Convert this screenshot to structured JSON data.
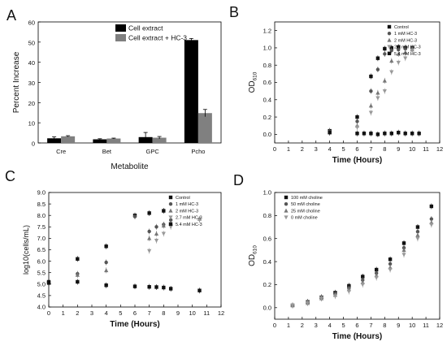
{
  "chart_data": [
    {
      "panel": "A",
      "type": "bar",
      "categories": [
        "Cre",
        "Bet",
        "GPC",
        "Pcho"
      ],
      "series": [
        {
          "name": "Cell extract",
          "color": "#000000",
          "values": [
            2.3,
            1.8,
            2.9,
            51.0
          ],
          "errors": [
            0.7,
            0.3,
            2.3,
            0.8
          ]
        },
        {
          "name": "Cell extract + HC-3",
          "color": "#808080",
          "values": [
            3.3,
            2.2,
            2.6,
            14.8
          ],
          "errors": [
            0.3,
            0.2,
            0.6,
            1.8
          ]
        }
      ],
      "xlabel": "Metabolite",
      "ylabel": "Percent Increase",
      "ylim": [
        0,
        60
      ],
      "yticks": [
        0,
        10,
        20,
        30,
        40,
        50,
        60
      ],
      "legend_position": "top-right"
    },
    {
      "panel": "B",
      "type": "scatter",
      "xlabel": "Time (Hours)",
      "ylabel": "OD",
      "ylabel_sub": "610",
      "xlim": [
        0,
        12
      ],
      "ylim": [
        -0.1,
        1.3
      ],
      "xticks": [
        0,
        1,
        2,
        3,
        4,
        5,
        6,
        7,
        8,
        9,
        10,
        11,
        12
      ],
      "yticks": [
        0.0,
        0.2,
        0.4,
        0.6,
        0.8,
        1.0,
        1.2
      ],
      "legend_position": "top-right",
      "series": [
        {
          "name": "Control",
          "marker": "square",
          "points": [
            [
              4,
              0.04
            ],
            [
              6,
              0.2
            ],
            [
              7,
              0.67
            ],
            [
              7.5,
              0.88
            ],
            [
              8,
              0.99
            ],
            [
              8.5,
              1.0
            ],
            [
              9,
              1.01
            ],
            [
              9.5,
              1.0
            ],
            [
              10,
              1.0
            ]
          ]
        },
        {
          "name": "1 mM HC-3",
          "marker": "circle",
          "points": [
            [
              4,
              0.03
            ],
            [
              6,
              0.15
            ],
            [
              7,
              0.5
            ],
            [
              7.5,
              0.75
            ],
            [
              8,
              0.93
            ],
            [
              8.5,
              0.97
            ],
            [
              9,
              0.98
            ],
            [
              9.5,
              0.99
            ],
            [
              10,
              1.0
            ]
          ]
        },
        {
          "name": "2 mM HC-3",
          "marker": "triangle-up",
          "points": [
            [
              4,
              0.03
            ],
            [
              6,
              0.1
            ],
            [
              7,
              0.33
            ],
            [
              7.5,
              0.48
            ],
            [
              8,
              0.62
            ],
            [
              8.5,
              0.85
            ],
            [
              9,
              0.93
            ],
            [
              9.5,
              0.95
            ],
            [
              10,
              0.98
            ]
          ]
        },
        {
          "name": "2.7 mM HC-3",
          "marker": "triangle-down",
          "points": [
            [
              4,
              0.02
            ],
            [
              6,
              0.08
            ],
            [
              7,
              0.25
            ],
            [
              7.5,
              0.42
            ],
            [
              8,
              0.5
            ],
            [
              8.5,
              0.72
            ],
            [
              9,
              0.83
            ],
            [
              9.5,
              0.88
            ],
            [
              10,
              0.97
            ]
          ]
        },
        {
          "name": "5.4 mM HC-3",
          "marker": "square",
          "points": [
            [
              4,
              0.02
            ],
            [
              6,
              0.01
            ],
            [
              6.5,
              0.01
            ],
            [
              7,
              0.01
            ],
            [
              7.5,
              0.0
            ],
            [
              8,
              0.01
            ],
            [
              8.5,
              0.01
            ],
            [
              9,
              0.02
            ],
            [
              9.5,
              0.01
            ],
            [
              10,
              0.01
            ],
            [
              10.5,
              0.01
            ]
          ]
        }
      ]
    },
    {
      "panel": "C",
      "type": "scatter",
      "xlabel": "Time (Hours)",
      "ylabel": "log10(cells/mL)",
      "xlim": [
        0,
        12
      ],
      "ylim": [
        4.0,
        9.0
      ],
      "xticks": [
        0,
        1,
        2,
        3,
        4,
        5,
        6,
        7,
        8,
        9,
        10,
        11,
        12
      ],
      "yticks": [
        4.0,
        4.5,
        5.0,
        5.5,
        6.0,
        6.5,
        7.0,
        7.5,
        8.0,
        8.5,
        9.0
      ],
      "legend_position": "top-right",
      "series": [
        {
          "name": "Control",
          "marker": "square",
          "points": [
            [
              0,
              5.1
            ],
            [
              2,
              6.1
            ],
            [
              4,
              6.65
            ],
            [
              6,
              8.0
            ],
            [
              7,
              8.1
            ],
            [
              8,
              8.2
            ]
          ]
        },
        {
          "name": "1 mM HC-3",
          "marker": "circle",
          "points": [
            [
              2,
              5.45
            ],
            [
              4,
              5.95
            ],
            [
              6,
              7.95
            ],
            [
              7,
              7.3
            ],
            [
              7.5,
              7.5
            ],
            [
              8,
              7.6
            ],
            [
              8.5,
              7.8
            ]
          ]
        },
        {
          "name": "2 mM HC-3",
          "marker": "triangle-up",
          "points": [
            [
              2,
              5.4
            ],
            [
              4,
              5.6
            ],
            [
              7,
              7.0
            ],
            [
              7.5,
              7.2
            ],
            [
              8,
              7.55
            ],
            [
              8.5,
              7.65
            ],
            [
              10.5,
              7.85
            ]
          ]
        },
        {
          "name": "2.7 mM HC-3",
          "marker": "triangle-down",
          "points": [
            [
              7,
              6.45
            ],
            [
              7.5,
              6.9
            ],
            [
              8,
              7.2
            ],
            [
              8.5,
              7.5
            ],
            [
              10.5,
              7.8
            ]
          ]
        },
        {
          "name": "5.4 mM HC-3",
          "marker": "square",
          "points": [
            [
              0,
              5.05
            ],
            [
              2,
              5.1
            ],
            [
              4,
              4.95
            ],
            [
              6,
              4.9
            ],
            [
              7,
              4.88
            ],
            [
              7.5,
              4.87
            ],
            [
              8,
              4.85
            ],
            [
              8.5,
              4.8
            ],
            [
              10.5,
              4.72
            ]
          ]
        }
      ]
    },
    {
      "panel": "D",
      "type": "scatter",
      "xlabel": "Time (Hours)",
      "ylabel": "OD",
      "ylabel_sub": "610",
      "xlim": [
        0,
        12
      ],
      "ylim": [
        -0.1,
        1.0
      ],
      "xticks": [
        0,
        1,
        2,
        3,
        4,
        5,
        6,
        7,
        8,
        9,
        10,
        11,
        12
      ],
      "yticks": [
        0.0,
        0.2,
        0.4,
        0.6,
        0.8,
        1.0
      ],
      "legend_position": "top-left",
      "series": [
        {
          "name": "100 mM choline",
          "marker": "square",
          "points": [
            [
              1.3,
              0.02
            ],
            [
              2.4,
              0.05
            ],
            [
              3.4,
              0.09
            ],
            [
              4.4,
              0.13
            ],
            [
              5.4,
              0.19
            ],
            [
              6.4,
              0.27
            ],
            [
              7.4,
              0.33
            ],
            [
              8.4,
              0.42
            ],
            [
              9.4,
              0.56
            ],
            [
              10.4,
              0.7
            ],
            [
              11.4,
              0.88
            ]
          ]
        },
        {
          "name": "50 mM choline",
          "marker": "circle",
          "points": [
            [
              1.3,
              0.02
            ],
            [
              2.4,
              0.05
            ],
            [
              3.4,
              0.09
            ],
            [
              4.4,
              0.12
            ],
            [
              5.4,
              0.17
            ],
            [
              6.4,
              0.24
            ],
            [
              7.4,
              0.3
            ],
            [
              8.4,
              0.38
            ],
            [
              9.4,
              0.52
            ],
            [
              10.4,
              0.66
            ],
            [
              11.4,
              0.77
            ]
          ]
        },
        {
          "name": "25 mM choline",
          "marker": "triangle-up",
          "points": [
            [
              1.3,
              0.02
            ],
            [
              2.4,
              0.04
            ],
            [
              3.4,
              0.08
            ],
            [
              4.4,
              0.11
            ],
            [
              5.4,
              0.16
            ],
            [
              6.4,
              0.22
            ],
            [
              7.4,
              0.28
            ],
            [
              8.4,
              0.35
            ],
            [
              9.4,
              0.5
            ],
            [
              10.4,
              0.63
            ],
            [
              11.4,
              0.74
            ]
          ]
        },
        {
          "name": "0 mM choline",
          "marker": "triangle-down",
          "points": [
            [
              1.3,
              0.02
            ],
            [
              2.4,
              0.04
            ],
            [
              3.4,
              0.08
            ],
            [
              4.4,
              0.1
            ],
            [
              5.4,
              0.14
            ],
            [
              6.4,
              0.2
            ],
            [
              7.4,
              0.26
            ],
            [
              8.4,
              0.33
            ],
            [
              9.4,
              0.46
            ],
            [
              10.4,
              0.6
            ],
            [
              11.4,
              0.72
            ]
          ]
        }
      ]
    }
  ]
}
